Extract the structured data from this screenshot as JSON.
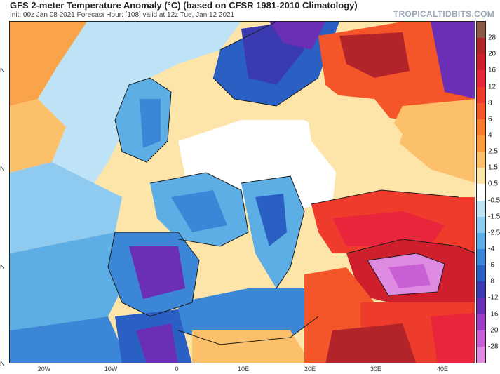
{
  "header": {
    "title": "GFS 2-meter Temperature Anomaly (°C) (based on CFSR 1981-2010 Climatology)",
    "subtitle": "Init: 00z Jan 08 2021   Forecast Hour: [108]   valid at 12z Tue, Jan 12 2021",
    "brand": "TROPICALTIDBITS.COM"
  },
  "map": {
    "lat_labels": [
      "N",
      "N",
      "N",
      "N"
    ],
    "lon_labels": [
      "20W",
      "10W",
      "0",
      "10E",
      "20E",
      "30E",
      "40E"
    ]
  },
  "colorbar": {
    "labels": [
      "28",
      "20",
      "16",
      "12",
      "8",
      "6",
      "4",
      "2.5",
      "1.5",
      "0.5",
      "-0.5",
      "-1.5",
      "-2.5",
      "-4",
      "-6",
      "-8",
      "-12",
      "-16",
      "-20",
      "-28"
    ],
    "colors": [
      "#8a5a44",
      "#b3232a",
      "#d01f2c",
      "#e8253a",
      "#ef3b2c",
      "#f4562a",
      "#f87a2c",
      "#fb9b3c",
      "#fcc06a",
      "#fde4a8",
      "#ffffff",
      "#bfe3f6",
      "#8fcbf0",
      "#5eaee6",
      "#3b86d6",
      "#2a5fc4",
      "#3a3bb0",
      "#6b2fb5",
      "#9c3fc4",
      "#c85fd4",
      "#e08be2"
    ]
  }
}
